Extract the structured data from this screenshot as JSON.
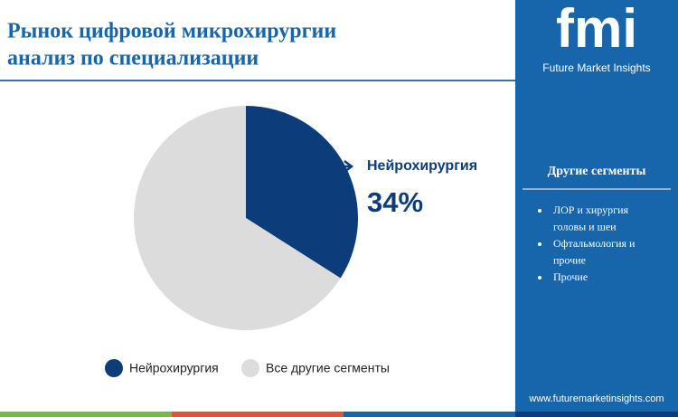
{
  "chart_data": {
    "type": "pie",
    "title": [
      "Рынок цифровой микрохирургии",
      "анализ по специализации"
    ],
    "categories": [
      "Нейрохирургия",
      "Все другие сегменты"
    ],
    "values": [
      34,
      66
    ],
    "value_labels": [
      "34%",
      null
    ],
    "colors": [
      "#0c3d7a",
      "#dcdcdc"
    ]
  },
  "sidebar": {
    "brand": "fmi",
    "brand_name": "Future Market Insights",
    "heading": "Другие сегменты",
    "items": [
      [
        "ЛОР и хирургия",
        "головы и шеи"
      ],
      [
        "Офтальмология и",
        "прочие"
      ],
      [
        "Прочие"
      ]
    ],
    "website": "www.futuremarketinsights.com"
  }
}
